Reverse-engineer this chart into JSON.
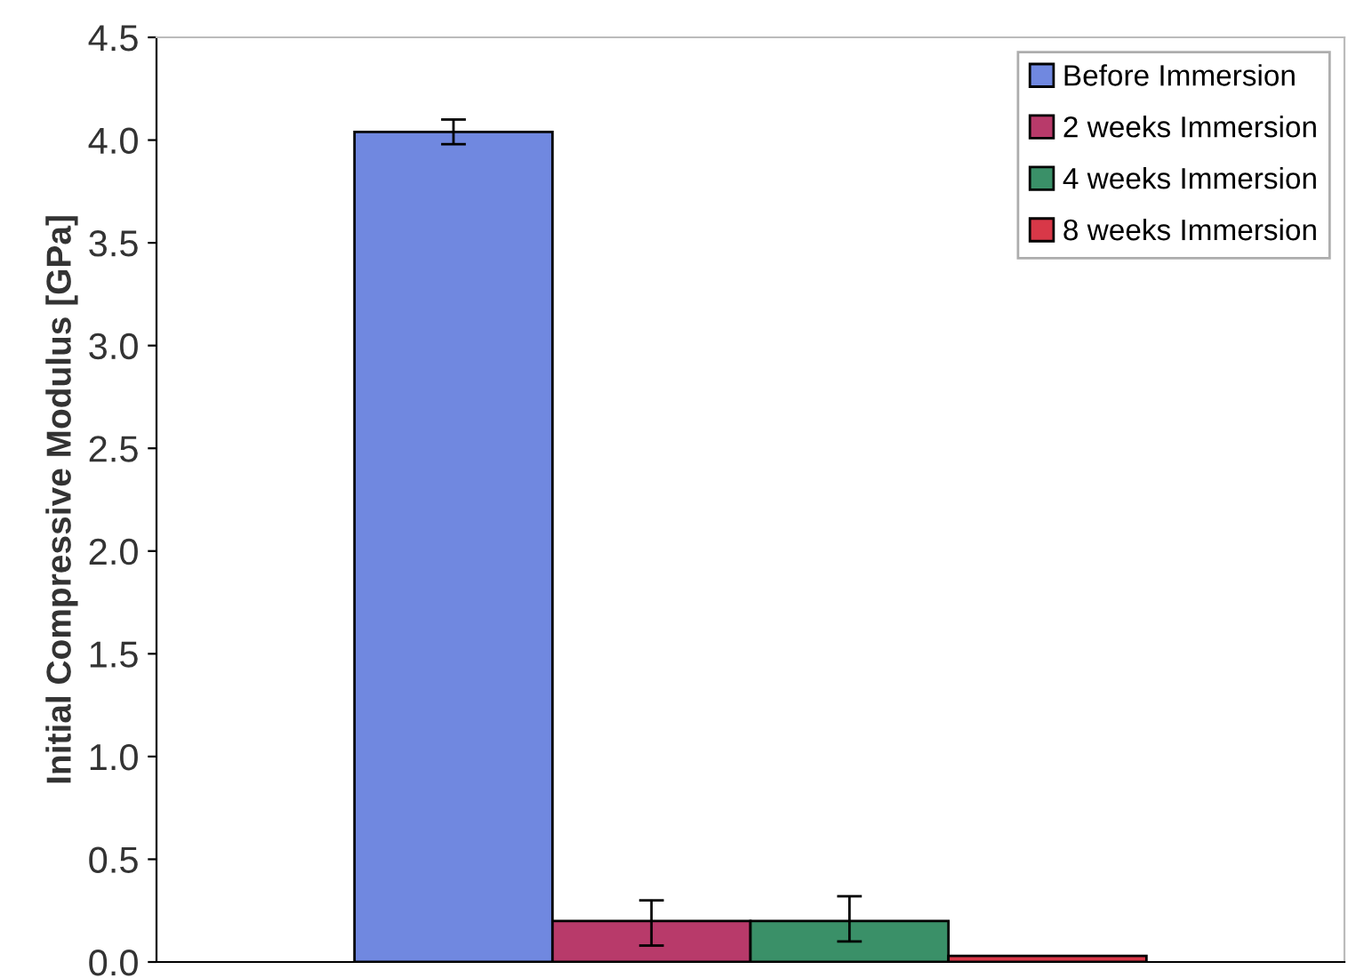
{
  "chart_data": {
    "type": "bar",
    "ylabel": "Initial Compressive Modulus [GPa]",
    "categories": [
      null
    ],
    "series": [
      {
        "name": "Before Immersion",
        "color": "#7088e0",
        "values": [
          4.04
        ],
        "errors": [
          0.06
        ]
      },
      {
        "name": "2 weeks Immersion",
        "color": "#b83a6a",
        "values": [
          0.2
        ],
        "errors": [
          [
            0.08,
            0.3
          ]
        ]
      },
      {
        "name": "4 weeks Immersion",
        "color": "#3a9068",
        "values": [
          0.2
        ],
        "errors": [
          [
            0.1,
            0.32
          ]
        ]
      },
      {
        "name": "8 weeks Immersion",
        "color": "#d83848",
        "values": [
          0.03
        ]
      }
    ],
    "ylim": [
      0,
      4.5
    ],
    "yticks": [
      {
        "value": 0,
        "label": "0.0"
      },
      0.5,
      {
        "value": 1,
        "label": "1.0"
      },
      1.5,
      {
        "value": 2,
        "label": "2.0"
      },
      2.5,
      {
        "value": 3,
        "label": "3.0"
      },
      3.5,
      {
        "value": 4,
        "label": "4.0"
      },
      4.5
    ],
    "grid": false,
    "legend": "top right"
  }
}
